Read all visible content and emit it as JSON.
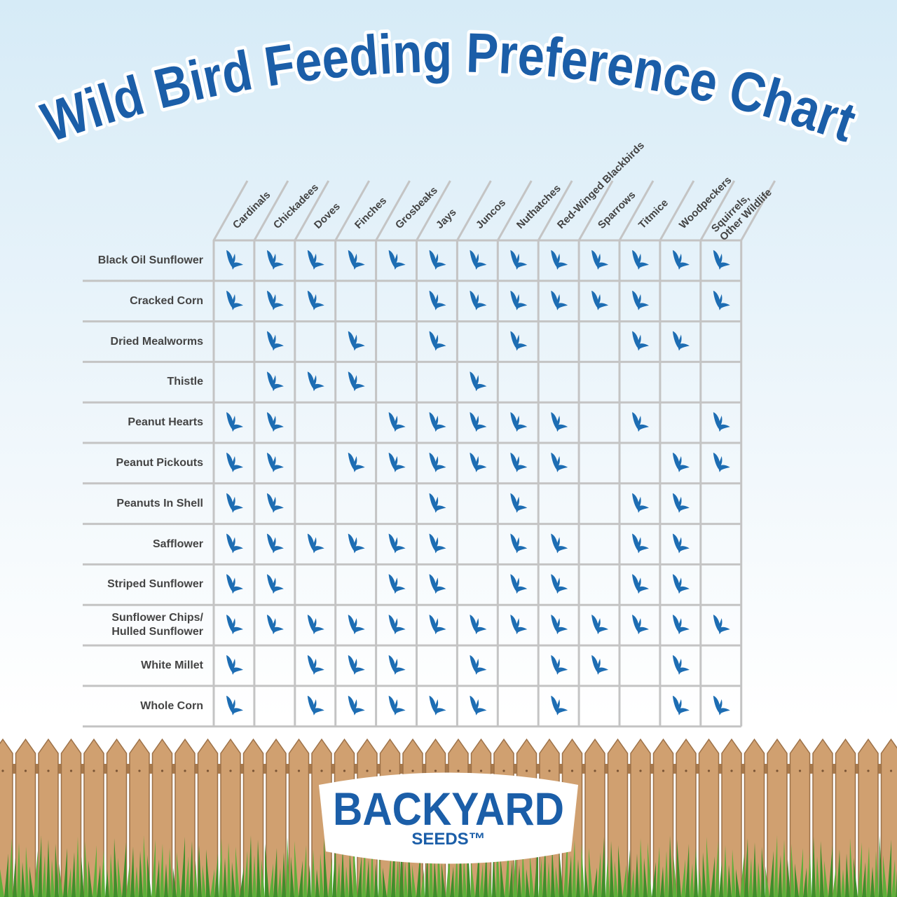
{
  "title": "Wild Bird Feeding Preference Chart",
  "table": {
    "columns": [
      "Cardinals",
      "Chickadees",
      "Doves",
      "Finches",
      "Grosbeaks",
      "Jays",
      "Juncos",
      "Nuthatches",
      "Red-Winged Blackbirds",
      "Sparrows",
      "Titmice",
      "Woodpeckers",
      "Squirrels,\nOther Wildlife"
    ],
    "rows": [
      {
        "label": "Black Oil Sunflower",
        "cells": [
          true,
          true,
          true,
          true,
          true,
          true,
          true,
          true,
          true,
          true,
          true,
          true,
          true
        ]
      },
      {
        "label": "Cracked Corn",
        "cells": [
          true,
          true,
          true,
          false,
          false,
          true,
          true,
          true,
          true,
          true,
          true,
          false,
          true
        ]
      },
      {
        "label": "Dried Mealworms",
        "cells": [
          false,
          true,
          false,
          true,
          false,
          true,
          false,
          true,
          false,
          false,
          true,
          true,
          false
        ]
      },
      {
        "label": "Thistle",
        "cells": [
          false,
          true,
          true,
          true,
          false,
          false,
          true,
          false,
          false,
          false,
          false,
          false,
          false
        ]
      },
      {
        "label": "Peanut Hearts",
        "cells": [
          true,
          true,
          false,
          false,
          true,
          true,
          true,
          true,
          true,
          false,
          true,
          false,
          true
        ]
      },
      {
        "label": "Peanut Pickouts",
        "cells": [
          true,
          true,
          false,
          true,
          true,
          true,
          true,
          true,
          true,
          false,
          false,
          true,
          true
        ]
      },
      {
        "label": "Peanuts In Shell",
        "cells": [
          true,
          true,
          false,
          false,
          false,
          true,
          false,
          true,
          false,
          false,
          true,
          true,
          false
        ]
      },
      {
        "label": "Safflower",
        "cells": [
          true,
          true,
          true,
          true,
          true,
          true,
          false,
          true,
          true,
          false,
          true,
          true,
          false
        ]
      },
      {
        "label": "Striped Sunflower",
        "cells": [
          true,
          true,
          false,
          false,
          true,
          true,
          false,
          true,
          true,
          false,
          true,
          true,
          false
        ]
      },
      {
        "label": "Sunflower Chips/\nHulled Sunflower",
        "cells": [
          true,
          true,
          true,
          true,
          true,
          true,
          true,
          true,
          true,
          true,
          true,
          true,
          true
        ]
      },
      {
        "label": "White Millet",
        "cells": [
          true,
          false,
          true,
          true,
          true,
          false,
          true,
          false,
          true,
          true,
          false,
          true,
          false
        ]
      },
      {
        "label": "Whole Corn",
        "cells": [
          true,
          false,
          true,
          true,
          true,
          true,
          true,
          false,
          true,
          false,
          false,
          true,
          true
        ]
      }
    ]
  },
  "logo": {
    "name": "BACKYARD",
    "sub": "SEEDS™"
  }
}
